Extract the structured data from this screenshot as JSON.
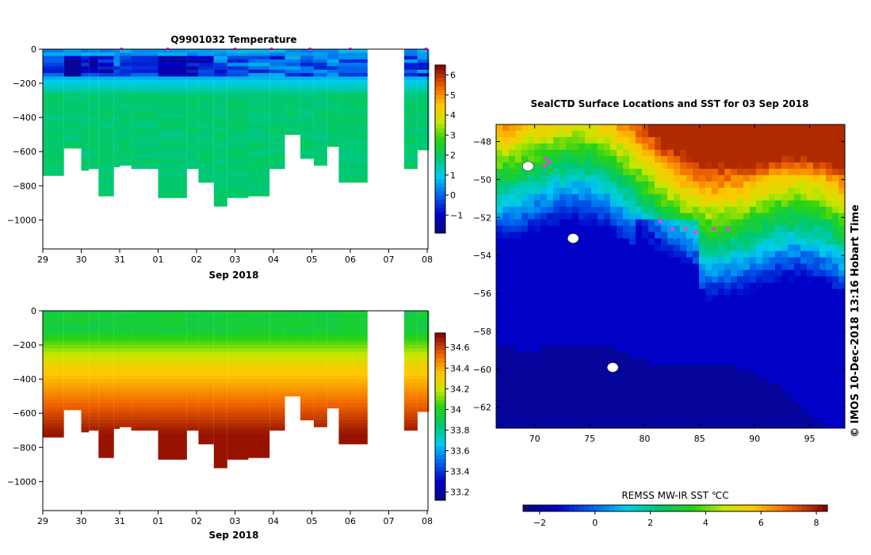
{
  "chart_data": [
    {
      "id": "temperature_section",
      "type": "heatmap",
      "title": "Q9901032  Temperature",
      "xlabel": "Sep 2018",
      "x_tick_labels": [
        "29",
        "30",
        "31",
        "01",
        "02",
        "03",
        "04",
        "05",
        "06",
        "07",
        "08"
      ],
      "y_ticks": [
        0,
        -200,
        -400,
        -600,
        -800,
        -1000
      ],
      "ylim": [
        -1170,
        0
      ],
      "colorbar_ticks": [
        6,
        5,
        4,
        3,
        2,
        1,
        0,
        -1
      ],
      "colorbar_range": [
        -1.9,
        6.5
      ],
      "profile_columns": [
        "start_day",
        "end_day",
        "max_depth_m"
      ],
      "profiles": [
        [
          0.0,
          0.55,
          740
        ],
        [
          0.55,
          1.0,
          580
        ],
        [
          1.0,
          1.2,
          710
        ],
        [
          1.2,
          1.45,
          700
        ],
        [
          1.45,
          1.85,
          860
        ],
        [
          1.85,
          2.0,
          690
        ],
        [
          2.0,
          2.3,
          680
        ],
        [
          2.3,
          3.0,
          700
        ],
        [
          3.0,
          3.75,
          870
        ],
        [
          3.75,
          4.05,
          700
        ],
        [
          4.05,
          4.45,
          780
        ],
        [
          4.45,
          4.8,
          920
        ],
        [
          4.8,
          5.35,
          870
        ],
        [
          5.35,
          5.9,
          860
        ],
        [
          5.9,
          6.3,
          700
        ],
        [
          6.3,
          6.7,
          500
        ],
        [
          6.7,
          7.05,
          640
        ],
        [
          7.05,
          7.4,
          680
        ],
        [
          7.4,
          7.7,
          570
        ],
        [
          7.7,
          8.45,
          780
        ],
        [
          9.4,
          9.75,
          700
        ],
        [
          9.75,
          10.05,
          590
        ]
      ],
      "surface_markers_day": [
        2.05,
        3.25,
        5.0,
        5.95,
        6.95,
        8.0,
        9.97
      ],
      "value_range_degC": [
        -1.5,
        2.5
      ]
    },
    {
      "id": "salinity_section",
      "type": "heatmap",
      "title": "",
      "xlabel": "Sep 2018",
      "x_tick_labels": [
        "29",
        "30",
        "31",
        "01",
        "02",
        "03",
        "04",
        "05",
        "06",
        "07",
        "08"
      ],
      "y_ticks": [
        0,
        -200,
        -400,
        -600,
        -800,
        -1000
      ],
      "ylim": [
        -1170,
        0
      ],
      "colorbar_ticks": [
        34.6,
        34.4,
        34.2,
        34,
        33.8,
        33.6,
        33.4,
        33.2
      ],
      "colorbar_range": [
        33.12,
        34.74
      ],
      "profile_columns": [
        "start_day",
        "end_day",
        "max_depth_m"
      ],
      "profiles": [
        [
          0.0,
          0.55,
          740
        ],
        [
          0.55,
          1.0,
          580
        ],
        [
          1.0,
          1.2,
          710
        ],
        [
          1.2,
          1.45,
          700
        ],
        [
          1.45,
          1.85,
          860
        ],
        [
          1.85,
          2.0,
          690
        ],
        [
          2.0,
          2.3,
          680
        ],
        [
          2.3,
          3.0,
          700
        ],
        [
          3.0,
          3.75,
          870
        ],
        [
          3.75,
          4.05,
          700
        ],
        [
          4.05,
          4.45,
          780
        ],
        [
          4.45,
          4.8,
          920
        ],
        [
          4.8,
          5.35,
          870
        ],
        [
          5.35,
          5.9,
          860
        ],
        [
          5.9,
          6.3,
          700
        ],
        [
          6.3,
          6.7,
          500
        ],
        [
          6.7,
          7.05,
          640
        ],
        [
          7.05,
          7.4,
          680
        ],
        [
          7.4,
          7.7,
          570
        ],
        [
          7.7,
          8.45,
          780
        ],
        [
          9.4,
          9.75,
          700
        ],
        [
          9.75,
          10.05,
          590
        ]
      ],
      "value_range_psu": [
        33.9,
        34.72
      ]
    },
    {
      "id": "sst_map",
      "type": "heatmap",
      "title": "SealCTD Surface Locations and SST for 03 Sep 2018",
      "x_ticks": [
        70,
        75,
        80,
        85,
        90,
        95
      ],
      "y_ticks": [
        -48,
        -50,
        -52,
        -54,
        -56,
        -58,
        -60,
        -62
      ],
      "xlim": [
        66.5,
        98.2
      ],
      "ylim": [
        -63.1,
        -47.1
      ],
      "colorbar_label": "REMSS MW-IR SST ℃C",
      "colorbar_ticks": [
        -2,
        0,
        2,
        4,
        6,
        8
      ],
      "colorbar_range": [
        -2.6,
        8.4
      ],
      "ctd_locations": [
        [
          71.0,
          -48.9
        ],
        [
          71.3,
          -49.1
        ],
        [
          70.9,
          -49.3
        ],
        [
          81.4,
          -52.2
        ],
        [
          82.5,
          -52.6
        ],
        [
          83.7,
          -52.6
        ],
        [
          84.6,
          -52.8
        ],
        [
          86.3,
          -52.6
        ],
        [
          87.6,
          -52.6
        ]
      ],
      "islands": [
        [
          69.4,
          -49.3
        ],
        [
          73.5,
          -53.1
        ],
        [
          77.1,
          -59.9
        ]
      ],
      "side_label": "©  IMOS 10-Dec-2018 13:16 Hobart Time"
    }
  ]
}
